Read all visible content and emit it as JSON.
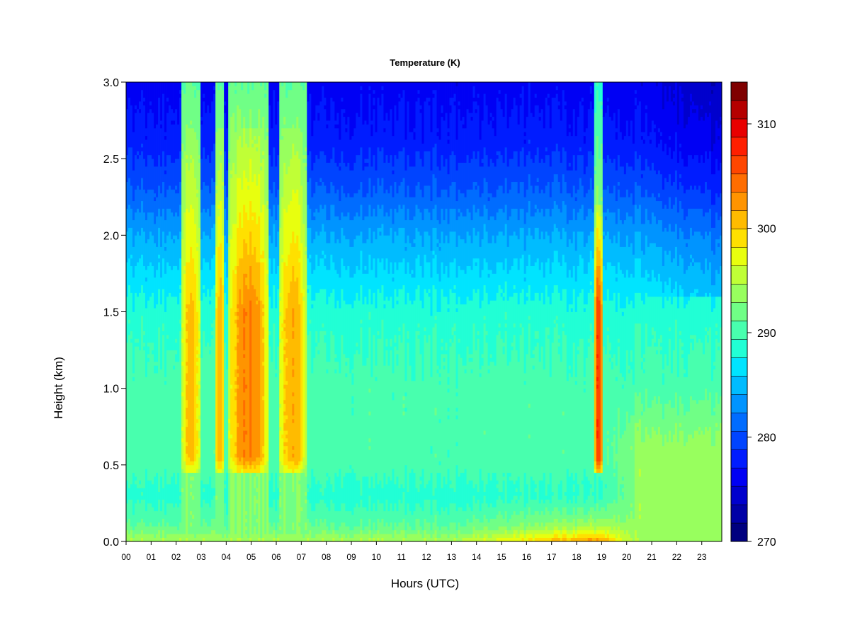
{
  "chart_data": {
    "type": "heatmap",
    "title": "Temperature (K)",
    "xlabel": "Hours (UTC)",
    "ylabel": "Height (km)",
    "xlim": [
      0,
      23.8
    ],
    "ylim": [
      0.0,
      3.0
    ],
    "x_ticks": [
      "00",
      "01",
      "02",
      "03",
      "04",
      "05",
      "06",
      "07",
      "08",
      "09",
      "10",
      "11",
      "12",
      "13",
      "14",
      "15",
      "16",
      "17",
      "18",
      "19",
      "20",
      "21",
      "22",
      "23"
    ],
    "y_ticks": [
      "0.0",
      "0.5",
      "1.0",
      "1.5",
      "2.0",
      "2.5",
      "3.0"
    ],
    "colorbar": {
      "min": 270,
      "max": 314,
      "step": 2,
      "tick_values": [
        270,
        280,
        290,
        300,
        310
      ],
      "colors": [
        "#00007f",
        "#0000a6",
        "#0000cd",
        "#0000f4",
        "#001cff",
        "#0044ff",
        "#006cff",
        "#0094ff",
        "#00bcff",
        "#00e4ff",
        "#21ffd5",
        "#48ffae",
        "#70ff86",
        "#98ff5e",
        "#c0ff36",
        "#e8ff0e",
        "#ffe000",
        "#ffbb00",
        "#ff9400",
        "#ff6d00",
        "#ff4600",
        "#ff1f00",
        "#e80000",
        "#b50000",
        "#7f0000"
      ]
    },
    "temperature_profile_background": {
      "height_km": [
        0.0,
        0.1,
        0.3,
        0.5,
        1.0,
        1.5,
        1.8,
        2.0,
        2.3,
        2.6,
        3.0
      ],
      "temperature_K": [
        298,
        294,
        291,
        293,
        293,
        291,
        288,
        286,
        282,
        279,
        277
      ]
    },
    "warm_plumes": [
      {
        "start_hour": 2.2,
        "end_hour": 3.0,
        "peak_K": 305
      },
      {
        "start_hour": 3.55,
        "end_hour": 3.95,
        "peak_K": 306
      },
      {
        "start_hour": 4.1,
        "end_hour": 5.7,
        "peak_K": 308
      },
      {
        "start_hour": 6.1,
        "end_hour": 7.2,
        "peak_K": 306
      },
      {
        "start_hour": 18.7,
        "end_hour": 19.05,
        "peak_K": 312
      }
    ],
    "surface_warming": {
      "start_hour": 13,
      "peak_hour": 18.5,
      "peak_K": 303
    },
    "evening_lower_layer": {
      "start_hour": 19,
      "end_hour": 23.8,
      "mean_K": 297
    }
  }
}
